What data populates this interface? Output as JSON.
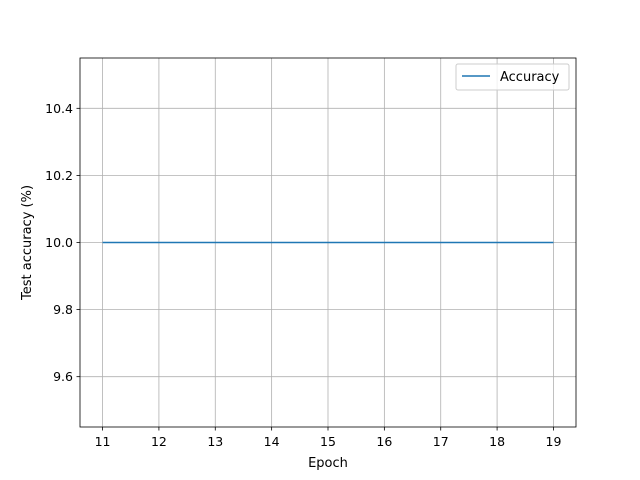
{
  "chart_data": {
    "type": "line",
    "xlabel": "Epoch",
    "ylabel": "Test accuracy (%)",
    "x": [
      11,
      12,
      13,
      14,
      15,
      16,
      17,
      18,
      19
    ],
    "series": [
      {
        "name": "Accuracy",
        "values": [
          10.0,
          10.0,
          10.0,
          10.0,
          10.0,
          10.0,
          10.0,
          10.0,
          10.0
        ],
        "color": "#1f77b4"
      }
    ],
    "xlim": [
      10.6,
      19.4
    ],
    "ylim": [
      9.45,
      10.55
    ],
    "xticks": [
      11,
      12,
      13,
      14,
      15,
      16,
      17,
      18,
      19
    ],
    "xtick_labels": [
      "11",
      "12",
      "13",
      "14",
      "15",
      "16",
      "17",
      "18",
      "19"
    ],
    "yticks": [
      9.6,
      9.8,
      10.0,
      10.2,
      10.4
    ],
    "ytick_labels": [
      "9.6",
      "9.8",
      "10.0",
      "10.2",
      "10.4"
    ],
    "grid": true,
    "legend_position": "top-right"
  },
  "colors": {
    "grid": "#b0b0b0",
    "axes": "#000000",
    "legend_border": "#cccccc"
  }
}
